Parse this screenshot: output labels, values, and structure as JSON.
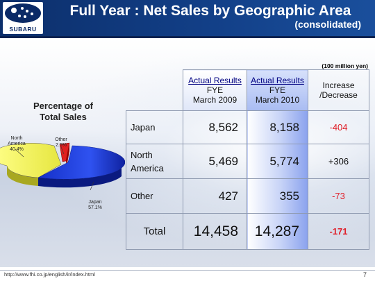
{
  "header": {
    "logo_text": "SUBARU",
    "title": "Full Year : Net Sales by Geographic Area",
    "subtitle": "(consolidated)"
  },
  "unit_note": "(100 million yen)",
  "pie": {
    "title_line1": "Percentage of",
    "title_line2": "Total Sales",
    "slices": [
      {
        "name": "Japan",
        "pct_label": "57.1%",
        "value": 57.1,
        "color": "#1e3fe0"
      },
      {
        "name": "North America",
        "name_line1": "North",
        "name_line2": "America",
        "pct_label": "40.4%",
        "value": 40.4,
        "color": "#ffff66"
      },
      {
        "name": "Other",
        "pct_label": "2.5%",
        "value": 2.5,
        "color": "#e02020"
      }
    ]
  },
  "table": {
    "col_headers": [
      {
        "line1": "Actual Results",
        "line2": "FYE",
        "line3": "March 2009"
      },
      {
        "line1": "Actual Results",
        "line2": "FYE",
        "line3": "March 2010"
      },
      {
        "line1": "Increase",
        "line2": "/Decrease"
      }
    ],
    "rows": [
      {
        "label": "Japan",
        "fy2009": "8,562",
        "fy2010": "8,158",
        "change": "-404"
      },
      {
        "label_line1": "North",
        "label_line2": "America",
        "fy2009": "5,469",
        "fy2010": "5,774",
        "change": "+306"
      },
      {
        "label": "Other",
        "fy2009": "427",
        "fy2010": "355",
        "change": "-73"
      }
    ],
    "total": {
      "label": "Total",
      "fy2009": "14,458",
      "fy2010": "14,287",
      "change": "-171"
    }
  },
  "footer": {
    "url": "http://www.fhi.co.jp/english/ir/index.html",
    "page_number": "7"
  }
}
